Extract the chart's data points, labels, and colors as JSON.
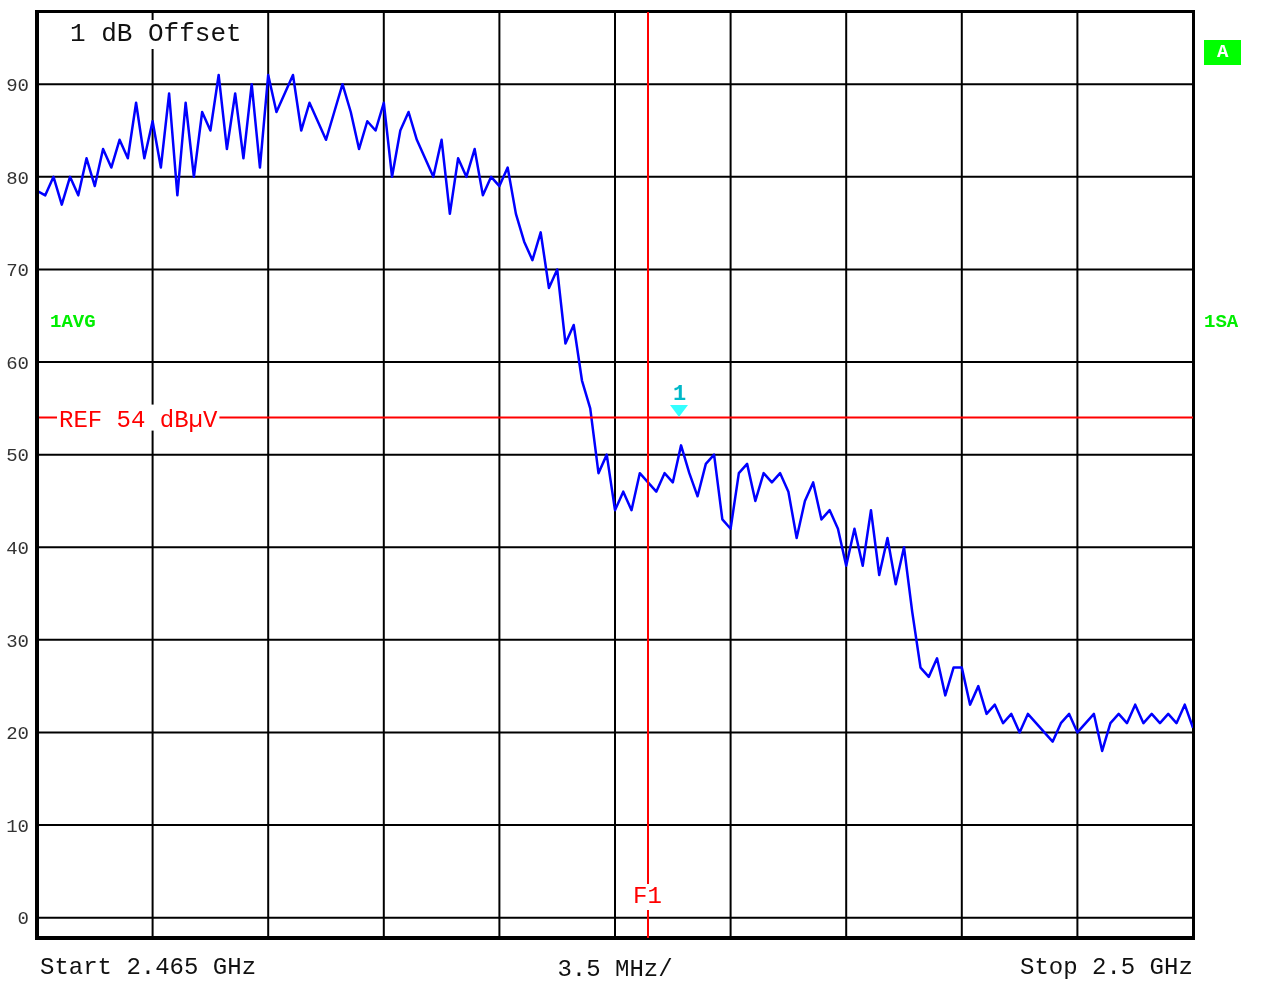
{
  "chart_data": {
    "type": "line",
    "xlabel": "3.5 MHz/",
    "categories": [
      null,
      null,
      null,
      null,
      null,
      null,
      null,
      null,
      null,
      null,
      null,
      null,
      null,
      null,
      null,
      null,
      null,
      null,
      null,
      null,
      null,
      null,
      null,
      null,
      null,
      null,
      null,
      null,
      null,
      null,
      null,
      null,
      null,
      null,
      null,
      null,
      null,
      null,
      null,
      null,
      null,
      null,
      null,
      null,
      null,
      null,
      null,
      null,
      null,
      null,
      null,
      null,
      null,
      null,
      null,
      null,
      null,
      null,
      null,
      null,
      null,
      null,
      null,
      null,
      null,
      null,
      null,
      null,
      null,
      null,
      null,
      null,
      null,
      null,
      null,
      null,
      null,
      null,
      null,
      null,
      null,
      null,
      null,
      null,
      null,
      null,
      null,
      null,
      null,
      null,
      null,
      null,
      null,
      null,
      null,
      null,
      null,
      null,
      null,
      null,
      null,
      null,
      null,
      null,
      null,
      null,
      null,
      null,
      null,
      null,
      null,
      null,
      null,
      null,
      null,
      null,
      null,
      null,
      null,
      null,
      null,
      null,
      null,
      null,
      null,
      null,
      null,
      null,
      null,
      null,
      null,
      null,
      null,
      null,
      null,
      null,
      null,
      null,
      null,
      null,
      null
    ],
    "series": [
      {
        "color": "#0000ff",
        "values": [
          78.5,
          78,
          80,
          77,
          80,
          78,
          82,
          79,
          83,
          81,
          84,
          82,
          88,
          82,
          86,
          81,
          89,
          78,
          88,
          80,
          87,
          85,
          91,
          83,
          89,
          82,
          90,
          81,
          91,
          87,
          89,
          91,
          85,
          88,
          86,
          84,
          87,
          90,
          87,
          83,
          86,
          85,
          88,
          80,
          85,
          87,
          84,
          82,
          80,
          84,
          76,
          82,
          80,
          83,
          78,
          80,
          79,
          81,
          76,
          73,
          71,
          74,
          68,
          70,
          62,
          64,
          58,
          55,
          48,
          50,
          44,
          46,
          44,
          48,
          47,
          46,
          48,
          47,
          51,
          48,
          45.5,
          49,
          50,
          43,
          42,
          48,
          49,
          45,
          48,
          47,
          48,
          46,
          41,
          45,
          47,
          43,
          44,
          42,
          38,
          42,
          38,
          44,
          37,
          41,
          36,
          40,
          33,
          27,
          26,
          28,
          24,
          27,
          27,
          23,
          25,
          22,
          23,
          21,
          22,
          20,
          22,
          21,
          20,
          19,
          21,
          22,
          20,
          21,
          22,
          18,
          21,
          22,
          21,
          23,
          21,
          22,
          21,
          22,
          21,
          23,
          20.5
        ]
      }
    ],
    "ylim": [
      -2.2,
      97.8
    ],
    "yticks": [
      0,
      10,
      20,
      30,
      40,
      50,
      60,
      70,
      80,
      90
    ],
    "grid": true,
    "legend": false,
    "marker": "none",
    "line_style": "solid",
    "ref_lines": [
      {
        "axis": "y",
        "value": 54,
        "label": "REF 54 dBµV",
        "color": "#ff0000"
      }
    ],
    "annotations": [
      "1 dB Offset",
      "1AVG",
      "1SA",
      "A",
      "1",
      "F1",
      "Start 2.465 GHz",
      "Stop 2.5 GHz"
    ]
  }
}
